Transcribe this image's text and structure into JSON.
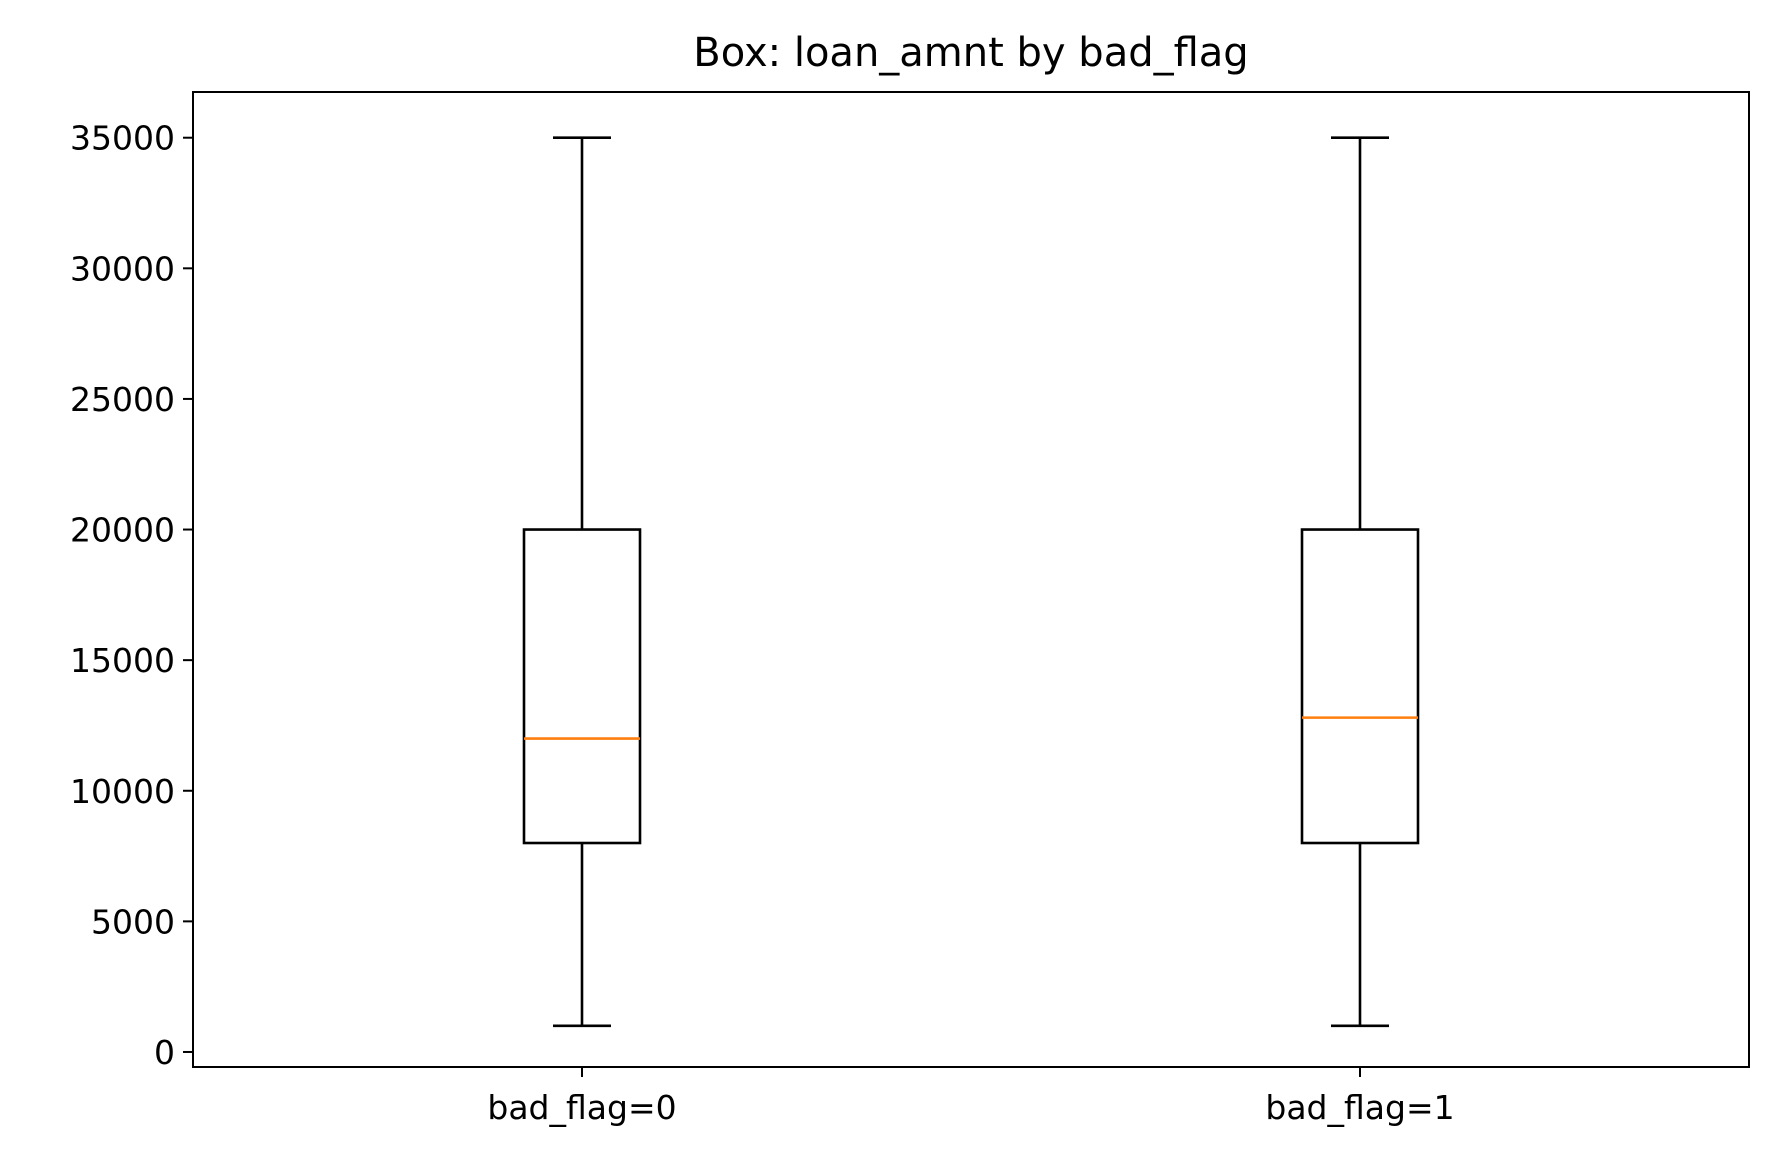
{
  "chart_data": {
    "type": "box",
    "title": "Box: loan_amnt by bad_flag",
    "xlabel": "",
    "ylabel": "",
    "categories": [
      "bad_flag=0",
      "bad_flag=1"
    ],
    "boxes": [
      {
        "label": "bad_flag=0",
        "whisker_low": 1000,
        "q1": 8000,
        "median": 12000,
        "q3": 20000,
        "whisker_high": 35000
      },
      {
        "label": "bad_flag=1",
        "whisker_low": 1000,
        "q1": 8000,
        "median": 12800,
        "q3": 20000,
        "whisker_high": 35000
      }
    ],
    "y_ticks": [
      0,
      5000,
      10000,
      15000,
      20000,
      25000,
      30000,
      35000
    ],
    "ylim": [
      -575,
      36750
    ],
    "grid": false,
    "legend": "none",
    "colors": {
      "box": "#000000",
      "whisker": "#000000",
      "median": "#ff7f0e",
      "axes": "#000000",
      "background": "#ffffff"
    }
  }
}
